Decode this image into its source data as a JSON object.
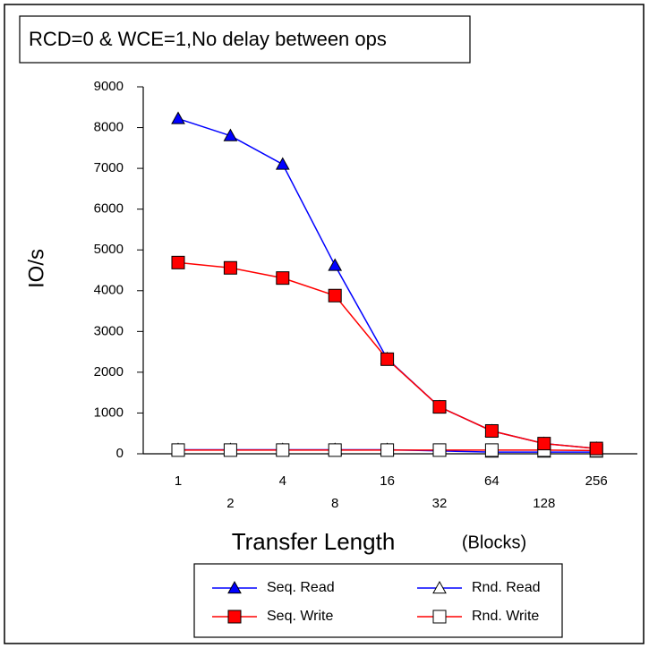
{
  "chart_data": {
    "type": "line",
    "title": "RCD=0 & WCE=1,No delay between ops",
    "y_label": "IO/s",
    "x_label": "Transfer Length",
    "x_unit": "(Blocks)",
    "categories": [
      "1",
      "2",
      "4",
      "8",
      "16",
      "32",
      "64",
      "128",
      "256"
    ],
    "ylim": [
      0,
      9000
    ],
    "yticks": [
      0,
      1000,
      2000,
      3000,
      4000,
      5000,
      6000,
      7000,
      8000,
      9000
    ],
    "grid": false,
    "series": [
      {
        "name": "Seq. Read",
        "color": "#0000ff",
        "marker": "triangle",
        "filled": true,
        "values": [
          8220,
          7800,
          7100,
          4620,
          2330,
          1150,
          560,
          250,
          130
        ]
      },
      {
        "name": "Seq. Write",
        "color": "#ff0000",
        "marker": "square",
        "filled": true,
        "values": [
          4690,
          4560,
          4310,
          3880,
          2320,
          1150,
          560,
          250,
          130
        ]
      },
      {
        "name": "Rnd. Read",
        "color": "#0000ff",
        "marker": "triangle",
        "filled": false,
        "values": [
          100,
          100,
          100,
          100,
          100,
          70,
          40,
          40,
          40
        ]
      },
      {
        "name": "Rnd. Write",
        "color": "#ff0000",
        "marker": "square",
        "filled": false,
        "values": [
          90,
          90,
          90,
          90,
          90,
          90,
          90,
          90,
          80
        ]
      }
    ]
  }
}
